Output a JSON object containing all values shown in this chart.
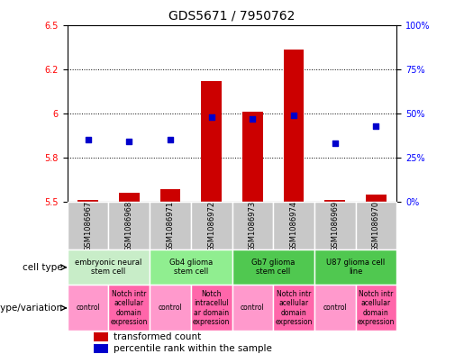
{
  "title": "GDS5671 / 7950762",
  "samples": [
    "GSM1086967",
    "GSM1086968",
    "GSM1086971",
    "GSM1086972",
    "GSM1086973",
    "GSM1086974",
    "GSM1086969",
    "GSM1086970"
  ],
  "transformed_count": [
    5.51,
    5.55,
    5.57,
    6.18,
    6.01,
    6.36,
    5.51,
    5.54
  ],
  "bar_bottom": 5.5,
  "percentile_rank": [
    35,
    34,
    35,
    48,
    47,
    49,
    33,
    43
  ],
  "ylim_left": [
    5.5,
    6.5
  ],
  "ylim_right": [
    0,
    100
  ],
  "yticks_left": [
    5.5,
    5.75,
    6.0,
    6.25,
    6.5
  ],
  "yticks_right": [
    0,
    25,
    50,
    75,
    100
  ],
  "bar_color": "#cc0000",
  "dot_color": "#0000cc",
  "cell_types": [
    {
      "label": "embryonic neural\nstem cell",
      "start": 0,
      "end": 1,
      "color": "#c8edc8"
    },
    {
      "label": "Gb4 glioma\nstem cell",
      "start": 2,
      "end": 3,
      "color": "#90ee90"
    },
    {
      "label": "Gb7 glioma\nstem cell",
      "start": 4,
      "end": 5,
      "color": "#50c850"
    },
    {
      "label": "U87 glioma cell\nline",
      "start": 6,
      "end": 7,
      "color": "#50c850"
    }
  ],
  "genotype_variations": [
    {
      "label": "control",
      "start": 0,
      "end": 0,
      "color": "#ff99cc"
    },
    {
      "label": "Notch intr\nacellular\ndomain\nexpression",
      "start": 1,
      "end": 1,
      "color": "#ff66aa"
    },
    {
      "label": "control",
      "start": 2,
      "end": 2,
      "color": "#ff99cc"
    },
    {
      "label": "Notch\nintracellul\nar domain\nexpression",
      "start": 3,
      "end": 3,
      "color": "#ff66aa"
    },
    {
      "label": "control",
      "start": 4,
      "end": 4,
      "color": "#ff99cc"
    },
    {
      "label": "Notch intr\nacellular\ndomain\nexpression",
      "start": 5,
      "end": 5,
      "color": "#ff66aa"
    },
    {
      "label": "control",
      "start": 6,
      "end": 6,
      "color": "#ff99cc"
    },
    {
      "label": "Notch intr\nacellular\ndomain\nexpression",
      "start": 7,
      "end": 7,
      "color": "#ff66aa"
    }
  ],
  "sample_bg_color": "#c8c8c8",
  "label_fontsize": 7.5,
  "title_fontsize": 10,
  "tick_fontsize": 7,
  "sample_label_fontsize": 6.0,
  "ct_fontsize": 6.0,
  "gv_fontsize": 5.5
}
